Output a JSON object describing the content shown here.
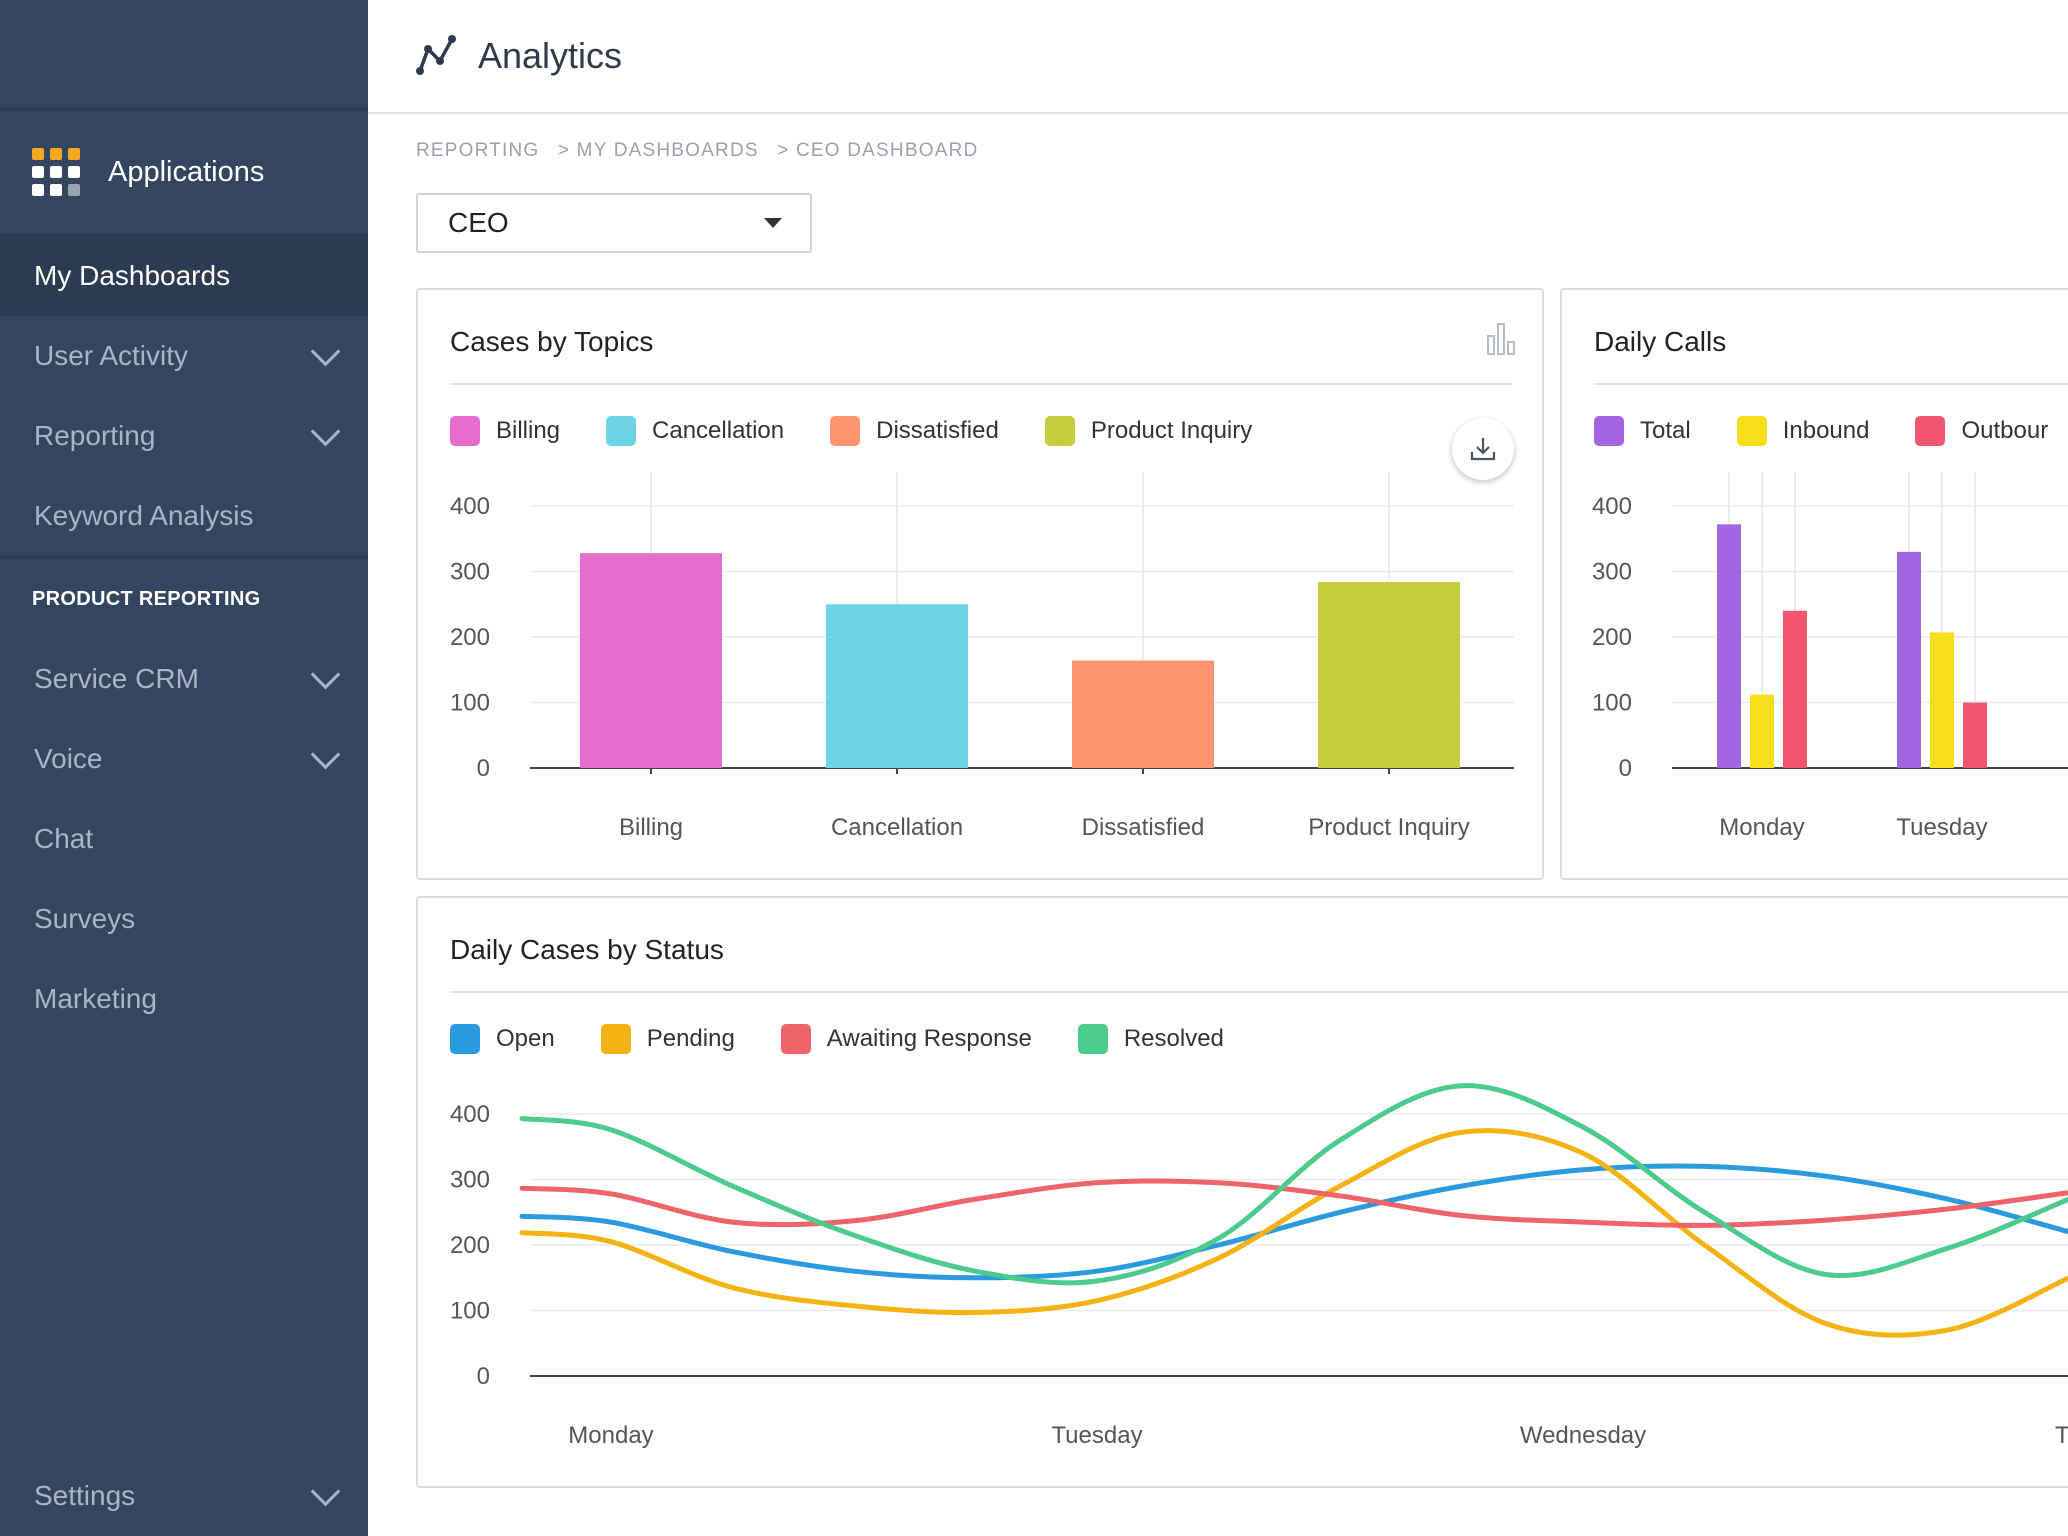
{
  "app": {
    "title": "Analytics"
  },
  "sidebar": {
    "applications_label": "Applications",
    "items": [
      {
        "label": "My Dashboards",
        "active": true,
        "expandable": false
      },
      {
        "label": "User Activity",
        "expandable": true
      },
      {
        "label": "Reporting",
        "expandable": true
      },
      {
        "label": "Keyword Analysis",
        "expandable": false
      }
    ],
    "section_label": "PRODUCT REPORTING",
    "product_items": [
      {
        "label": "Service CRM",
        "expandable": true
      },
      {
        "label": "Voice",
        "expandable": true
      },
      {
        "label": "Chat",
        "expandable": false
      },
      {
        "label": "Surveys",
        "expandable": false
      },
      {
        "label": "Marketing",
        "expandable": false
      }
    ],
    "settings_label": "Settings",
    "app_grid_colors": [
      "#f5a623",
      "#f5a623",
      "#f5a623",
      "#ffffff",
      "#ffffff",
      "#ffffff",
      "#ffffff",
      "#ffffff",
      "#9aa3ad"
    ]
  },
  "breadcrumb": [
    "REPORTING",
    "> MY DASHBOARDS",
    "> CEO DASHBOARD"
  ],
  "dashboard_select": {
    "value": "CEO"
  },
  "cards": {
    "topics": {
      "title": "Cases by Topics"
    },
    "calls": {
      "title": "Daily Calls"
    },
    "status": {
      "title": "Daily Cases by Status"
    }
  },
  "chart_data": [
    {
      "type": "bar",
      "title": "Cases by Topics",
      "categories": [
        "Billing",
        "Cancellation",
        "Dissatisfied",
        "Product Inquiry"
      ],
      "values": [
        328,
        250,
        164,
        284
      ],
      "colors": [
        "#e46cce",
        "#6dd4e6",
        "#ff9570",
        "#c8cd3e"
      ],
      "legend": [
        "Billing",
        "Cancellation",
        "Dissatisfied",
        "Product Inquiry"
      ],
      "ylim": [
        0,
        400
      ],
      "yticks": [
        0,
        100,
        200,
        300,
        400
      ],
      "legend_position": "top-left",
      "grid": true
    },
    {
      "type": "bar",
      "title": "Daily Calls",
      "categories": [
        "Monday",
        "Tuesday"
      ],
      "series": [
        {
          "name": "Total",
          "color": "#a565e3",
          "values": [
            372,
            330
          ]
        },
        {
          "name": "Inbound",
          "color": "#f9de1b",
          "values": [
            112,
            207
          ]
        },
        {
          "name": "Outbound",
          "color": "#f0566e",
          "values": [
            240,
            100
          ]
        }
      ],
      "legend_labels": [
        "Total",
        "Inbound",
        "Outbour"
      ],
      "ylim": [
        0,
        400
      ],
      "yticks": [
        0,
        100,
        200,
        300,
        400
      ],
      "legend_position": "top-left",
      "grid": true
    },
    {
      "type": "line",
      "title": "Daily Cases by Status",
      "categories": [
        "Monday",
        "Tuesday",
        "Wednesday",
        "Th"
      ],
      "x": [
        0,
        0.25,
        0.5,
        0.75,
        1.0,
        1.25,
        1.5,
        1.75,
        2.0,
        2.25,
        2.5,
        2.75,
        3.0
      ],
      "series": [
        {
          "name": "Open",
          "color": "#2b9be0",
          "values": [
            235,
            190,
            160,
            150,
            160,
            200,
            250,
            290,
            315,
            320,
            305,
            270,
            220
          ]
        },
        {
          "name": "Pending",
          "color": "#f5b213",
          "values": [
            205,
            135,
            107,
            97,
            115,
            180,
            290,
            372,
            340,
            200,
            80,
            70,
            150
          ]
        },
        {
          "name": "Awaiting Response",
          "color": "#ee6469",
          "values": [
            278,
            235,
            237,
            270,
            295,
            295,
            275,
            245,
            235,
            230,
            238,
            255,
            280
          ]
        },
        {
          "name": "Resolved",
          "color": "#4bcb8c",
          "values": [
            376,
            290,
            215,
            160,
            145,
            210,
            360,
            443,
            380,
            250,
            155,
            195,
            270
          ]
        }
      ],
      "ylim": [
        0,
        400
      ],
      "yticks": [
        0,
        100,
        200,
        300,
        400
      ],
      "legend_position": "top-left",
      "grid": true
    }
  ]
}
